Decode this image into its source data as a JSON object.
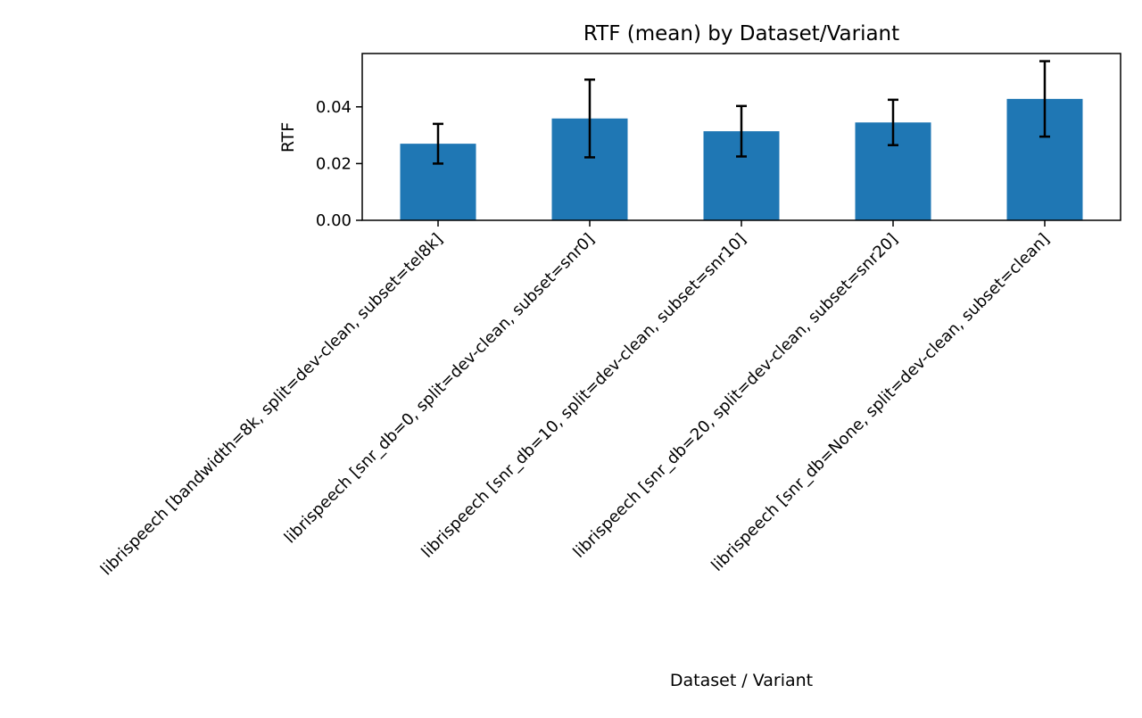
{
  "chart_data": {
    "type": "bar",
    "title": "RTF (mean) by Dataset/Variant",
    "xlabel": "Dataset / Variant",
    "ylabel": "RTF",
    "categories": [
      "librispeech [bandwidth=8k, split=dev-clean, subset=tel8k]",
      "librispeech [snr_db=0, split=dev-clean, subset=snr0]",
      "librispeech [snr_db=10, split=dev-clean, subset=snr10]",
      "librispeech [snr_db=20, split=dev-clean, subset=snr20]",
      "librispeech [snr_db=None, split=dev-clean, subset=clean]"
    ],
    "values": [
      0.027,
      0.0359,
      0.0314,
      0.0345,
      0.0428
    ],
    "error": [
      0.007,
      0.0137,
      0.0089,
      0.008,
      0.0133
    ],
    "ylim": [
      0,
      0.0588
    ],
    "yticks": [
      0.0,
      0.02,
      0.04
    ],
    "ytick_labels": [
      "0.00",
      "0.02",
      "0.04"
    ],
    "bar_color": "#1f77b4",
    "error_color": "#000000",
    "grid": false,
    "legend": false
  }
}
